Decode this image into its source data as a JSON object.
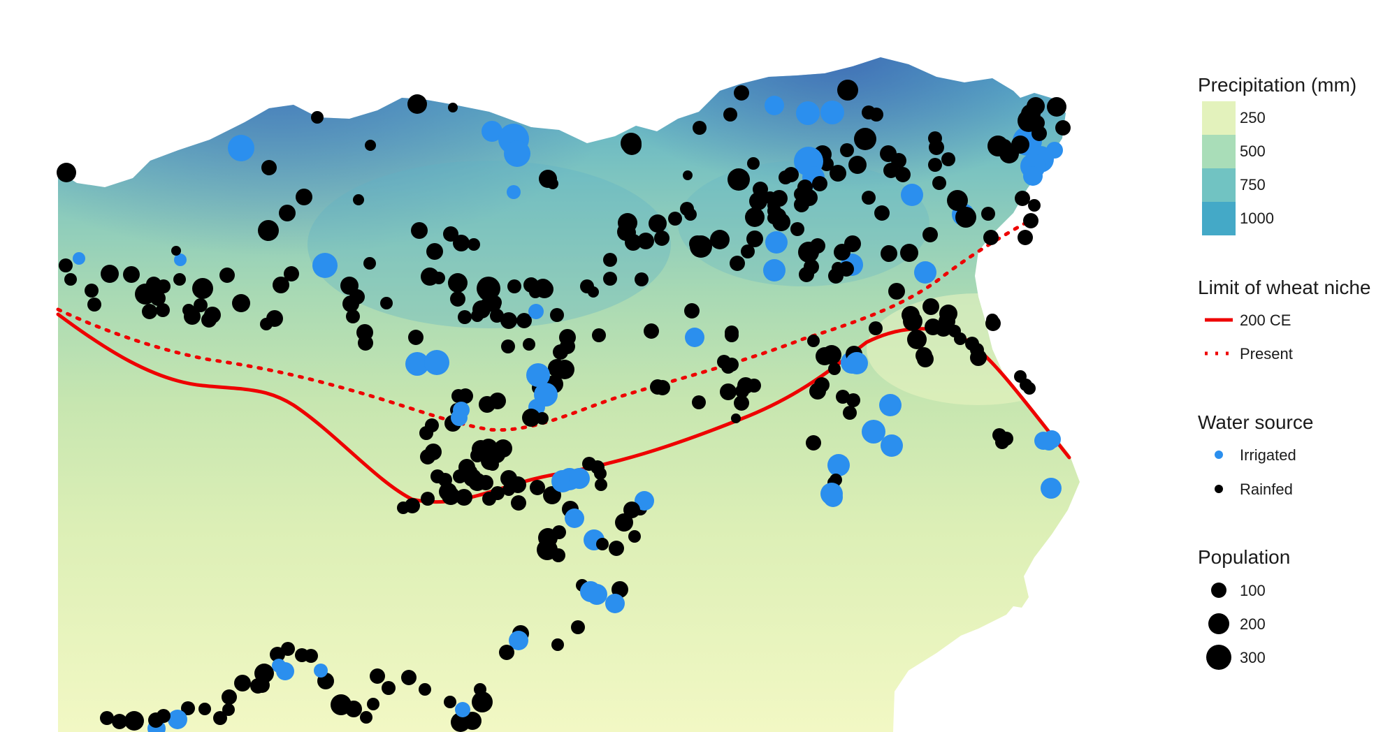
{
  "legend": {
    "precipitation": {
      "title": "Precipitation (mm)",
      "items": [
        {
          "label": "250",
          "color": "#e3f2bc"
        },
        {
          "label": "500",
          "color": "#a9ddb8"
        },
        {
          "label": "750",
          "color": "#71c3c2"
        },
        {
          "label": "1000",
          "color": "#44a9c7"
        }
      ]
    },
    "niche": {
      "title": "Limit of wheat niche",
      "items": [
        {
          "label": "200 CE",
          "line": "solid",
          "color": "#ee0000"
        },
        {
          "label": "Present",
          "line": "dotted",
          "color": "#ee0000"
        }
      ]
    },
    "water": {
      "title": "Water source",
      "items": [
        {
          "label": "Irrigated",
          "color": "#2b8fee"
        },
        {
          "label": "Rainfed",
          "color": "#000000"
        }
      ]
    },
    "population": {
      "title": "Population",
      "items": [
        {
          "label": "100",
          "value": 100
        },
        {
          "label": "200",
          "value": 200
        },
        {
          "label": "300",
          "value": 300
        }
      ]
    }
  },
  "colors": {
    "irrigated": "#2b8fee",
    "rainfed": "#000000",
    "niche_line": "#ee0000",
    "sea": "#ffffff"
  }
}
